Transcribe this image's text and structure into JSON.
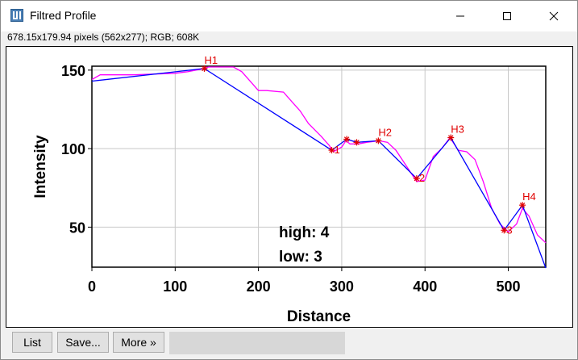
{
  "window": {
    "title": "Filtred Profile",
    "info": "678.15x179.94 pixels (562x277); RGB; 608K"
  },
  "buttons": {
    "list": "List",
    "save": "Save...",
    "more": "More »"
  },
  "chart_data": {
    "type": "line",
    "xlabel": "Distance",
    "ylabel": "Intensity",
    "xlim": [
      0,
      545
    ],
    "ylim": [
      24.5,
      152.5
    ],
    "x_ticks": [
      0,
      100,
      200,
      300,
      400,
      500
    ],
    "y_ticks": [
      50,
      100,
      150
    ],
    "grid": true,
    "series": [
      {
        "color": "#ff00ff",
        "x": [
          0,
          10,
          50,
          100,
          115,
          135,
          140,
          170,
          180,
          200,
          210,
          230,
          240,
          250,
          260,
          275,
          285,
          290,
          300,
          305,
          310,
          320,
          330,
          345,
          355,
          365,
          380,
          390,
          400,
          410,
          420,
          430,
          440,
          450,
          460,
          470,
          480,
          490,
          500,
          510,
          517,
          525,
          535,
          545
        ],
        "y": [
          144,
          147,
          147,
          148,
          149,
          151,
          152,
          152,
          149,
          137,
          137,
          136,
          130,
          124,
          116,
          108,
          102,
          98,
          101,
          105,
          103,
          103,
          104,
          105,
          104,
          99,
          87,
          79,
          80,
          95,
          100,
          107,
          99,
          98,
          93,
          79,
          62,
          52,
          47,
          52,
          62,
          57,
          45,
          40
        ]
      },
      {
        "color": "#0000ff",
        "x": [
          0,
          135,
          288,
          306,
          318,
          344,
          390,
          431,
          495,
          517,
          545
        ],
        "y": [
          143,
          151,
          99,
          106,
          104,
          105,
          81,
          107,
          48,
          64,
          24
        ]
      }
    ],
    "peaks": [
      {
        "label": "H1",
        "x": 135,
        "y": 151
      },
      {
        "label": "H2",
        "x": 344,
        "y": 105
      },
      {
        "label": "H3",
        "x": 431,
        "y": 107
      },
      {
        "label": "H4",
        "x": 517,
        "y": 64
      }
    ],
    "valleys": [
      {
        "label": "1",
        "x": 288,
        "y": 99
      },
      {
        "label": "2",
        "x": 390,
        "y": 81
      },
      {
        "label": "3",
        "x": 495,
        "y": 48
      }
    ],
    "minor_markers": [
      {
        "x": 306,
        "y": 106
      },
      {
        "x": 318,
        "y": 104
      }
    ],
    "annotations": {
      "high": "high: 4",
      "low": "low: 3"
    }
  }
}
